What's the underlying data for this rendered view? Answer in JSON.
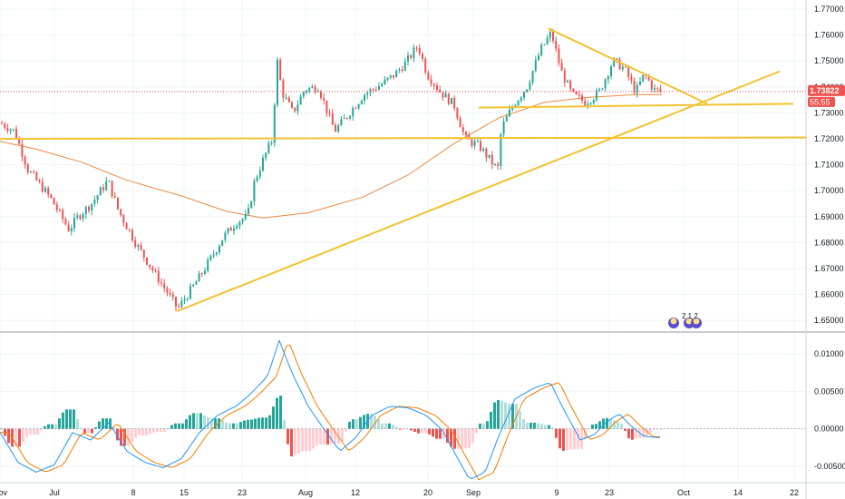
{
  "price_badge": "1.73822",
  "countdown_badge": "55:55",
  "event_marker_text": "2 1 2",
  "colors": {
    "up": "#26a69a",
    "down": "#ef5350",
    "ma": "#f0883e",
    "trend": "#f2c230",
    "macd": "#2196f3",
    "signal": "#f57c00",
    "hist_up_strong": "#26a69a",
    "hist_up_weak": "#b2dfdb",
    "hist_down_strong": "#ef5350",
    "hist_down_weak": "#ffcdd2",
    "badge_price": "#ef5350",
    "badge_timer": "#ef5350"
  },
  "chart_data": [
    {
      "type": "candlestick",
      "title": "",
      "y_ticks": [
        "1.77000",
        "1.76000",
        "1.75000",
        "1.74000",
        "1.73000",
        "1.72000",
        "1.71000",
        "1.70000",
        "1.69000",
        "1.68000",
        "1.67000",
        "1.66000",
        "1.65000"
      ],
      "x_ticks": [
        "Jul",
        "8",
        "15",
        "23",
        "Aug",
        "12",
        "20",
        "Sep",
        "9",
        "23",
        "Oct",
        "14",
        "22",
        "Nov"
      ],
      "ylim": [
        1.6455,
        1.7735
      ],
      "current_price": 1.73822,
      "moving_average_points": [
        [
          0,
          1.719
        ],
        [
          40,
          1.716
        ],
        [
          90,
          1.711
        ],
        [
          140,
          1.704
        ],
        [
          200,
          1.698
        ],
        [
          250,
          1.692
        ],
        [
          290,
          1.6895
        ],
        [
          340,
          1.6915
        ],
        [
          400,
          1.6975
        ],
        [
          450,
          1.706
        ],
        [
          500,
          1.718
        ],
        [
          550,
          1.728
        ],
        [
          600,
          1.734
        ],
        [
          650,
          1.736
        ],
        [
          700,
          1.737
        ],
        [
          730,
          1.737
        ]
      ],
      "trend_lines": [
        {
          "name": "horizontal-support",
          "points": [
            [
              0,
              1.72
            ],
            [
              890,
              1.7205
            ]
          ]
        },
        {
          "name": "rising-trendline",
          "points": [
            [
              195,
              1.6535
            ],
            [
              860,
              1.746
            ]
          ]
        },
        {
          "name": "range-floor",
          "points": [
            [
              528,
              1.732
            ],
            [
              875,
              1.7335
            ]
          ]
        },
        {
          "name": "descending-resistance",
          "points": [
            [
              605,
              1.7625
            ],
            [
              780,
              1.7335
            ]
          ]
        }
      ]
    },
    {
      "type": "macd",
      "y_ticks": [
        "0.01000",
        "0.00500",
        "0.00000",
        "-0.00500"
      ],
      "ylim": [
        -0.0072,
        0.0128
      ]
    }
  ]
}
